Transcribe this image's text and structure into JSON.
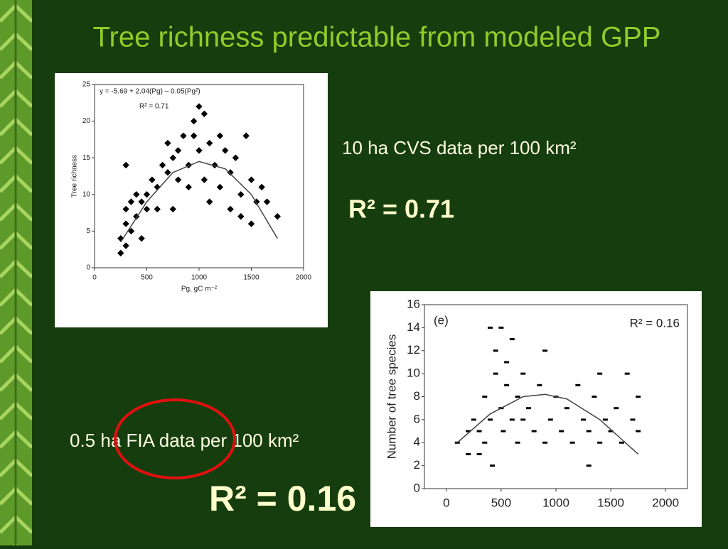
{
  "slide": {
    "title": "Tree richness predictable from modeled GPP",
    "caption_top": "10 ha CVS data per 100 km²",
    "r2_top": "R² = 0.71",
    "caption_bottom": "0.5 ha FIA data per 100 km²",
    "r2_bottom": "R² = 0.16"
  },
  "chart_data": [
    {
      "type": "scatter",
      "annotations": [
        "y = -5.69 + 2.04(Pg) – 0.05(Pg²)",
        "R² = 0.71"
      ],
      "xlabel": "Pg, gC m⁻²",
      "ylabel": "Tree richness",
      "xlim": [
        0,
        2000
      ],
      "ylim": [
        0,
        25
      ],
      "xticks": [
        0,
        500,
        1000,
        1500,
        2000
      ],
      "yticks": [
        0,
        5,
        10,
        15,
        20,
        25
      ],
      "marker": "diamond",
      "series": [
        {
          "color": "#000000",
          "x": [
            250,
            250,
            300,
            300,
            300,
            300,
            350,
            350,
            400,
            400,
            450,
            450,
            500,
            500,
            550,
            600,
            600,
            650,
            700,
            700,
            750,
            750,
            800,
            800,
            850,
            900,
            900,
            950,
            950,
            1000,
            1000,
            1050,
            1050,
            1100,
            1100,
            1150,
            1200,
            1200,
            1250,
            1300,
            1300,
            1350,
            1400,
            1400,
            1450,
            1500,
            1500,
            1550,
            1600,
            1650,
            1750
          ],
          "values": [
            2,
            4,
            3,
            6,
            8,
            14,
            5,
            9,
            7,
            10,
            4,
            9,
            8,
            10,
            12,
            11,
            8,
            14,
            13,
            17,
            8,
            15,
            12,
            16,
            18,
            14,
            11,
            18,
            20,
            22,
            16,
            21,
            12,
            17,
            9,
            14,
            18,
            11,
            16,
            13,
            8,
            15,
            10,
            7,
            18,
            12,
            6,
            9,
            11,
            9,
            7
          ]
        }
      ],
      "fit": {
        "color": "#444444",
        "x": [
          250,
          500,
          750,
          1000,
          1250,
          1500,
          1750
        ],
        "values": [
          3.5,
          9,
          13,
          14.5,
          13.5,
          10,
          4
        ]
      }
    },
    {
      "type": "scatter",
      "annotations": [
        "(e)",
        "R² = 0.16"
      ],
      "ylabel": "Number of tree species",
      "xlim": [
        -200,
        2200
      ],
      "ylim": [
        0,
        16
      ],
      "xticks": [
        0,
        500,
        1000,
        1500,
        2000
      ],
      "yticks": [
        0,
        2,
        4,
        6,
        8,
        10,
        12,
        14,
        16
      ],
      "marker": "dash",
      "series": [
        {
          "color": "#000000",
          "x": [
            100,
            200,
            200,
            250,
            300,
            300,
            350,
            350,
            400,
            400,
            420,
            450,
            450,
            500,
            500,
            520,
            550,
            550,
            600,
            600,
            650,
            650,
            700,
            700,
            750,
            800,
            850,
            900,
            900,
            950,
            1000,
            1050,
            1100,
            1150,
            1200,
            1250,
            1300,
            1300,
            1350,
            1400,
            1400,
            1450,
            1500,
            1550,
            1600,
            1650,
            1700,
            1750,
            1750
          ],
          "values": [
            4,
            5,
            3,
            6,
            5,
            3,
            8,
            4,
            14,
            6,
            2,
            10,
            12,
            14,
            7,
            5,
            11,
            9,
            13,
            6,
            8,
            4,
            10,
            6,
            7,
            5,
            9,
            12,
            4,
            6,
            8,
            5,
            7,
            4,
            9,
            6,
            2,
            5,
            8,
            10,
            4,
            6,
            5,
            7,
            4,
            10,
            6,
            8,
            5
          ]
        }
      ],
      "fit": {
        "color": "#444444",
        "x": [
          100,
          400,
          700,
          900,
          1100,
          1400,
          1750
        ],
        "values": [
          4,
          6.5,
          8,
          8.2,
          7.8,
          6,
          3
        ]
      }
    }
  ]
}
